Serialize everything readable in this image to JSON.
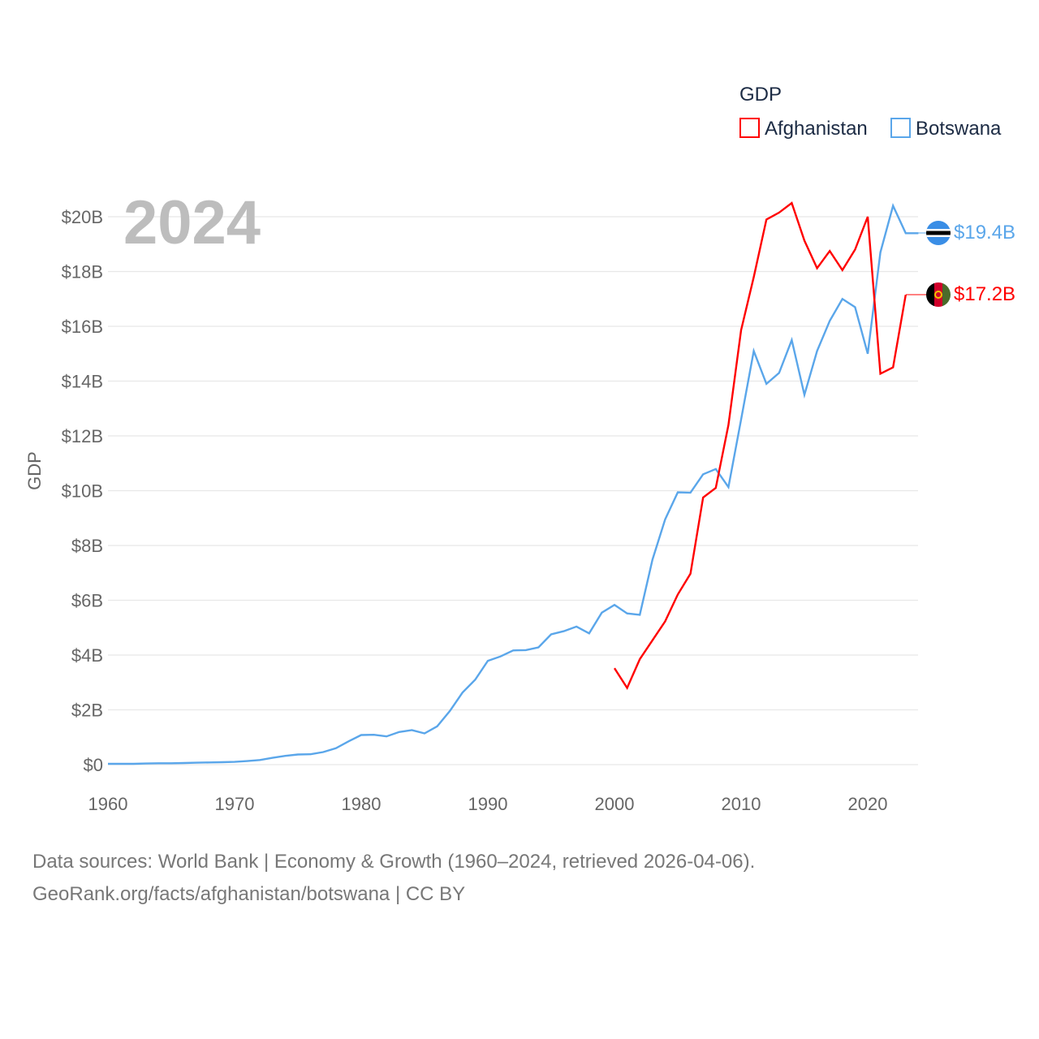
{
  "chart_data": {
    "type": "line",
    "title": "GDP",
    "year_label": "2024",
    "ylabel": "GDP",
    "xlabel": "",
    "xlim": [
      1960,
      2024
    ],
    "ylim": [
      0,
      21
    ],
    "x_ticks": [
      "1960",
      "1970",
      "1980",
      "1990",
      "2000",
      "2010",
      "2020"
    ],
    "y_ticks": [
      {
        "v": 0,
        "label": "$0"
      },
      {
        "v": 2,
        "label": "$2B"
      },
      {
        "v": 4,
        "label": "$4B"
      },
      {
        "v": 6,
        "label": "$6B"
      },
      {
        "v": 8,
        "label": "$8B"
      },
      {
        "v": 10,
        "label": "$10B"
      },
      {
        "v": 12,
        "label": "$12B"
      },
      {
        "v": 14,
        "label": "$14B"
      },
      {
        "v": 16,
        "label": "$16B"
      },
      {
        "v": 18,
        "label": "$18B"
      },
      {
        "v": 20,
        "label": "$20B"
      }
    ],
    "grid": true,
    "legend_placement": "top-right",
    "units": "USD billions",
    "series": [
      {
        "name": "Afghanistan",
        "color": "#ff0000",
        "end_label": "$17.2B",
        "start_year": 2000,
        "values": [
          3.52,
          2.8,
          3.85,
          4.54,
          5.23,
          6.21,
          6.97,
          9.75,
          10.1,
          12.4,
          15.86,
          17.8,
          19.9,
          20.15,
          20.5,
          19.13,
          18.12,
          18.75,
          18.05,
          18.8,
          20.0,
          14.27,
          14.5,
          17.15
        ]
      },
      {
        "name": "Botswana",
        "color": "#5aa6ea",
        "end_label": "$19.4B",
        "start_year": 1960,
        "values": [
          0.03,
          0.03,
          0.03,
          0.04,
          0.05,
          0.05,
          0.06,
          0.07,
          0.08,
          0.09,
          0.1,
          0.13,
          0.17,
          0.25,
          0.32,
          0.37,
          0.38,
          0.46,
          0.6,
          0.85,
          1.08,
          1.09,
          1.03,
          1.19,
          1.26,
          1.14,
          1.4,
          1.96,
          2.63,
          3.1,
          3.79,
          3.95,
          4.17,
          4.18,
          4.28,
          4.76,
          4.87,
          5.04,
          4.79,
          5.55,
          5.83,
          5.52,
          5.47,
          7.48,
          8.95,
          9.94,
          9.93,
          10.6,
          10.79,
          10.13,
          12.6,
          15.1,
          13.9,
          14.3,
          15.5,
          13.5,
          15.1,
          16.2,
          17.0,
          16.7,
          15.0,
          18.7,
          20.4,
          19.4,
          19.4
        ]
      }
    ]
  },
  "footer": {
    "line1": "Data sources: World Bank | Economy & Growth (1960–2024, retrieved 2026-04-06).",
    "line2": "GeoRank.org/facts/afghanistan/botswana | CC BY"
  }
}
